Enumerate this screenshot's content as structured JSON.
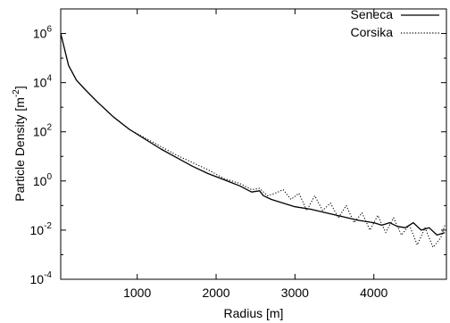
{
  "chart_data": {
    "type": "line",
    "xlabel": "Radius [m]",
    "ylabel": {
      "main": "Particle Density [m",
      "sup": "-2",
      "close": "]"
    },
    "xlim": [
      30,
      4920
    ],
    "ylim_log10": [
      -4,
      7
    ],
    "y_scale": "log",
    "x_ticks": [
      {
        "value": 1000,
        "label": "1000"
      },
      {
        "value": 2000,
        "label": "2000"
      },
      {
        "value": 3000,
        "label": "3000"
      },
      {
        "value": 4000,
        "label": "4000"
      }
    ],
    "y_ticks": [
      {
        "exp": -4,
        "base": "10",
        "sup": "-4"
      },
      {
        "exp": -2,
        "base": "10",
        "sup": "-2"
      },
      {
        "exp": 0,
        "base": "10",
        "sup": "0"
      },
      {
        "exp": 2,
        "base": "10",
        "sup": "2"
      },
      {
        "exp": 4,
        "base": "10",
        "sup": "4"
      },
      {
        "exp": 6,
        "base": "10",
        "sup": "6"
      }
    ],
    "legend_position": "top-right",
    "series": [
      {
        "name": "Seneca",
        "style": "solid",
        "x": [
          30,
          130,
          230,
          330,
          500,
          700,
          900,
          1100,
          1300,
          1500,
          1700,
          1900,
          2100,
          2300,
          2450,
          2550,
          2600,
          2700,
          2800,
          2900,
          3000,
          3200,
          3400,
          3600,
          3800,
          4000,
          4100,
          4200,
          4300,
          4400,
          4500,
          4600,
          4700,
          4800,
          4900
        ],
        "y": [
          6.0,
          4.7,
          4.1,
          3.75,
          3.2,
          2.6,
          2.1,
          1.7,
          1.3,
          0.95,
          0.6,
          0.3,
          0.05,
          -0.2,
          -0.45,
          -0.4,
          -0.6,
          -0.75,
          -0.85,
          -0.95,
          -1.05,
          -1.15,
          -1.3,
          -1.45,
          -1.6,
          -1.7,
          -1.8,
          -1.7,
          -1.85,
          -1.9,
          -1.7,
          -2.0,
          -1.9,
          -2.2,
          -2.1
        ]
      },
      {
        "name": "Corsika",
        "style": "dotted",
        "x": [
          30,
          130,
          230,
          330,
          500,
          700,
          900,
          1100,
          1300,
          1500,
          1700,
          1900,
          2100,
          2300,
          2450,
          2550,
          2650,
          2750,
          2850,
          2950,
          3050,
          3150,
          3250,
          3350,
          3450,
          3550,
          3650,
          3750,
          3850,
          3950,
          4050,
          4150,
          4250,
          4350,
          4450,
          4550,
          4650,
          4750,
          4850,
          4900
        ],
        "y": [
          6.0,
          4.7,
          4.1,
          3.75,
          3.2,
          2.6,
          2.1,
          1.75,
          1.4,
          1.05,
          0.75,
          0.45,
          0.1,
          -0.1,
          -0.35,
          -0.3,
          -0.6,
          -0.5,
          -0.35,
          -0.75,
          -0.5,
          -1.2,
          -0.6,
          -1.2,
          -0.9,
          -1.5,
          -1.0,
          -1.7,
          -1.3,
          -2.0,
          -1.4,
          -2.1,
          -1.5,
          -2.2,
          -1.8,
          -2.6,
          -1.9,
          -2.7,
          -2.3,
          -1.8
        ]
      }
    ]
  }
}
